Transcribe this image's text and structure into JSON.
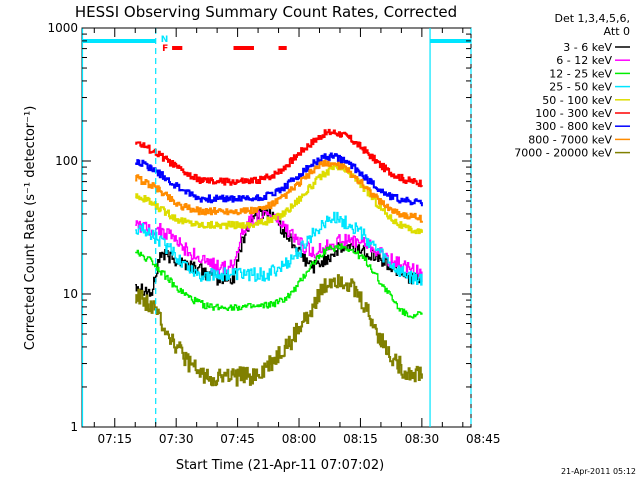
{
  "chart_data": {
    "type": "line",
    "title": "HESSI Observing Summary Count Rates, Corrected",
    "xlabel": "Start Time (21-Apr-11 07:07:02)",
    "ylabel": "Corrected Count Rate (s⁻¹ detector⁻¹)",
    "yscale": "log",
    "ylim": [
      1,
      1000
    ],
    "xlim_minutes": [
      7.0,
      102.0
    ],
    "x_tick_labels": [
      "07:15",
      "07:30",
      "07:45",
      "08:00",
      "08:15",
      "08:30",
      "08:45"
    ],
    "x_tick_minutes": [
      15,
      30,
      45,
      60,
      75,
      90,
      105
    ],
    "y_tick_labels": [
      "1",
      "10",
      "100",
      "1000"
    ],
    "y_tick_values": [
      1,
      10,
      100,
      1000
    ],
    "legend_header": [
      "Det 1,3,4,5,6,",
      "Att 0"
    ],
    "legend_placement": "right",
    "timestamp": "21-Apr-2011 05:12",
    "x": [
      20,
      22,
      24,
      26,
      28,
      30,
      32,
      34,
      36,
      38,
      40,
      42,
      44,
      46,
      48,
      50,
      52,
      54,
      56,
      58,
      60,
      62,
      64,
      66,
      68,
      70,
      72,
      74,
      76,
      78,
      80,
      82,
      84,
      86,
      88,
      90
    ],
    "series": [
      {
        "name": "3 - 6 keV",
        "color": "#000000",
        "values": [
          12,
          11,
          10,
          20,
          19,
          18,
          17,
          16,
          15,
          14,
          13,
          13,
          13,
          25,
          36,
          40,
          42,
          38,
          30,
          25,
          20,
          17,
          16,
          18,
          20,
          22,
          22,
          22,
          21,
          20,
          18,
          16,
          15,
          14,
          13,
          12
        ]
      },
      {
        "name": "6 - 12 keV",
        "color": "#ff00ff",
        "values": [
          34,
          32,
          31,
          30,
          28,
          25,
          22,
          20,
          18,
          17,
          16,
          16,
          16,
          30,
          36,
          38,
          40,
          37,
          32,
          28,
          24,
          22,
          21,
          22,
          24,
          25,
          25,
          25,
          24,
          22,
          20,
          18,
          17,
          16,
          15,
          14
        ]
      },
      {
        "name": "12 - 25 keV",
        "color": "#00ee00",
        "values": [
          21,
          19,
          18,
          15,
          13,
          11,
          10,
          9,
          8.5,
          8,
          8,
          8,
          8,
          8,
          8,
          8,
          8.2,
          8.5,
          9,
          10,
          12,
          15,
          18,
          21,
          22,
          23,
          22,
          20,
          18,
          15,
          12,
          10,
          8,
          7,
          7,
          7
        ]
      },
      {
        "name": "25 - 50 keV",
        "color": "#00e5ff",
        "values": [
          32,
          30,
          28,
          25,
          22,
          19,
          17,
          15,
          14,
          14,
          14,
          14,
          14,
          14,
          14,
          14,
          14,
          15,
          16,
          18,
          21,
          25,
          30,
          35,
          37,
          36,
          34,
          31,
          27,
          23,
          20,
          17,
          15,
          14,
          13,
          13
        ]
      },
      {
        "name": "50 - 100 keV",
        "color": "#dddd00",
        "values": [
          55,
          52,
          48,
          44,
          40,
          37,
          35,
          34,
          33,
          33,
          33,
          33,
          33,
          33,
          33,
          34,
          35,
          37,
          40,
          45,
          52,
          60,
          70,
          80,
          88,
          88,
          82,
          72,
          62,
          52,
          44,
          38,
          34,
          31,
          30,
          29
        ]
      },
      {
        "name": "100 - 300 keV",
        "color": "#ff0000",
        "values": [
          140,
          130,
          120,
          110,
          100,
          90,
          82,
          75,
          72,
          70,
          70,
          70,
          70,
          70,
          70,
          72,
          75,
          80,
          88,
          100,
          115,
          130,
          145,
          160,
          165,
          160,
          150,
          135,
          120,
          105,
          92,
          83,
          77,
          72,
          70,
          68
        ]
      },
      {
        "name": "300 - 800 keV",
        "color": "#0000ff",
        "values": [
          100,
          95,
          88,
          80,
          72,
          65,
          60,
          55,
          52,
          52,
          52,
          52,
          52,
          52,
          52,
          53,
          55,
          58,
          62,
          70,
          78,
          88,
          98,
          106,
          108,
          104,
          96,
          86,
          76,
          67,
          60,
          55,
          52,
          50,
          49,
          48
        ]
      },
      {
        "name": "800 - 7000 keV",
        "color": "#ff8c00",
        "values": [
          75,
          70,
          65,
          60,
          54,
          48,
          45,
          43,
          42,
          42,
          42,
          42,
          42,
          42,
          42,
          43,
          45,
          48,
          53,
          60,
          68,
          78,
          88,
          95,
          96,
          92,
          84,
          74,
          65,
          56,
          49,
          44,
          41,
          39,
          38,
          37
        ]
      },
      {
        "name": "7000 - 20000 keV",
        "color": "#808000",
        "values": [
          10,
          9,
          8,
          6.5,
          5,
          4,
          3.3,
          2.8,
          2.5,
          2.4,
          2.4,
          2.4,
          2.4,
          2.4,
          2.4,
          2.5,
          2.8,
          3.2,
          3.8,
          4.5,
          5.5,
          7,
          9,
          11,
          13,
          13,
          12,
          10,
          8,
          6,
          4.5,
          3.5,
          3,
          2.6,
          2.5,
          2.5
        ]
      }
    ],
    "flags": [
      {
        "label": "F",
        "color": "#ff0000",
        "segments": [
          [
            29.0,
            31.5
          ],
          [
            44.0,
            49.0
          ],
          [
            55.0,
            57.0
          ]
        ]
      },
      {
        "label": "N",
        "color": "#00e5ff",
        "segments": [
          [
            7.0,
            25.0
          ],
          [
            92.0,
            102.0
          ]
        ]
      }
    ],
    "vertical_lines": [
      {
        "minute": 25.0,
        "style": "dashed",
        "color": "#00e5ff"
      },
      {
        "minute": 92.0,
        "style": "solid",
        "color": "#00e5ff"
      },
      {
        "minute": 102.0,
        "style": "dashed",
        "color": "#00e5ff"
      }
    ]
  }
}
